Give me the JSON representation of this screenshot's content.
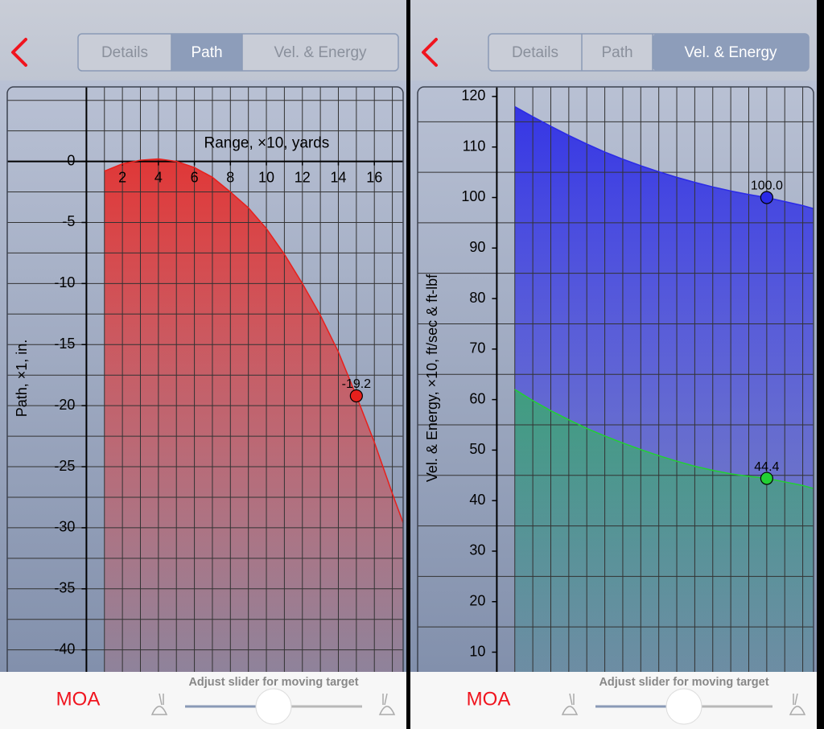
{
  "screens": [
    {
      "tabs": [
        "Details",
        "Path",
        "Vel. & Energy"
      ],
      "selected_tab": 1,
      "footer": {
        "unit": "MOA",
        "slider_hint": "Adjust slider for moving target"
      }
    },
    {
      "tabs": [
        "Details",
        "Path",
        "Vel. & Energy"
      ],
      "selected_tab": 2,
      "footer": {
        "unit": "MOA",
        "slider_hint": "Adjust slider for moving target"
      }
    }
  ],
  "chart_data": [
    {
      "type": "area",
      "x_label": "Range, ×10, yards",
      "y_label": "Path, ×1, in.",
      "x": [
        1,
        2,
        3,
        4,
        5,
        6,
        7,
        8,
        9,
        10,
        11,
        12,
        13,
        14,
        15,
        16,
        17,
        17.6
      ],
      "series": [
        {
          "color": "#e8201c",
          "values": [
            -0.8,
            -0.2,
            0.1,
            0.2,
            0,
            -0.5,
            -1.3,
            -2.5,
            -3.8,
            -5.5,
            -7.6,
            -10,
            -12.6,
            -15.6,
            -19.2,
            -23,
            -27.2,
            -29.6
          ],
          "value_labels": [
            null,
            null,
            null,
            null,
            null,
            null,
            null,
            null,
            null,
            null,
            null,
            null,
            null,
            null,
            "-19.2",
            null,
            null,
            null
          ]
        }
      ],
      "xlim": [
        -4.4,
        17.6
      ],
      "ylim": [
        -41.8,
        6.1
      ],
      "xticks": [
        2,
        4,
        6,
        8,
        10,
        12,
        14,
        16
      ],
      "yticks": [
        0,
        -5,
        -10,
        -15,
        -20,
        -25,
        -30,
        -35,
        -40
      ],
      "xgrid": [
        1,
        2,
        3,
        4,
        5,
        6,
        7,
        8,
        9,
        10,
        11,
        12,
        13,
        14,
        15,
        16,
        17
      ],
      "ygrid": [
        5,
        2.5,
        -2.5,
        -5,
        -7.5,
        -10,
        -12.5,
        -15,
        -17.5,
        -20,
        -22.5,
        -25,
        -27.5,
        -30,
        -32.5,
        -35,
        -37.5,
        -40
      ]
    },
    {
      "type": "area",
      "y_label": "Vel. & Energy, ×10, ft/sec & ft-lbf",
      "x": [
        1,
        2,
        3,
        4,
        5,
        6,
        7,
        8,
        9,
        10,
        11,
        12,
        13,
        14,
        15,
        16,
        17,
        17.6
      ],
      "series": [
        {
          "color": "#2a2ae6",
          "values": [
            118,
            116,
            114.1,
            112.3,
            110.6,
            109,
            107.6,
            106.3,
            105.1,
            104,
            103,
            102.1,
            101.3,
            100.6,
            100,
            99.2,
            98.4,
            97.8
          ],
          "value_labels": [
            null,
            null,
            null,
            null,
            null,
            null,
            null,
            null,
            null,
            null,
            null,
            null,
            null,
            null,
            "100.0",
            null,
            null,
            null
          ]
        },
        {
          "color": "#22d033",
          "values": [
            62,
            59.8,
            57.8,
            56,
            54.3,
            52.8,
            51.4,
            50.1,
            48.9,
            47.8,
            46.8,
            46,
            45.3,
            44.8,
            44.4,
            43.7,
            43,
            42.4
          ],
          "value_labels": [
            null,
            null,
            null,
            null,
            null,
            null,
            null,
            null,
            null,
            null,
            null,
            null,
            null,
            null,
            "44.4",
            null,
            null,
            null
          ]
        }
      ],
      "xlim": [
        -4.4,
        17.6
      ],
      "ylim": [
        6.1,
        121.9
      ],
      "yticks": [
        10,
        20,
        30,
        40,
        50,
        60,
        70,
        80,
        90,
        100,
        110,
        120
      ],
      "xgrid": [
        1,
        2,
        3,
        4,
        5,
        6,
        7,
        8,
        9,
        10,
        11,
        12,
        13,
        14,
        15,
        16,
        17
      ],
      "ygrid": [
        15,
        25,
        35,
        45,
        55,
        65,
        75,
        85,
        95,
        105,
        115
      ]
    }
  ]
}
